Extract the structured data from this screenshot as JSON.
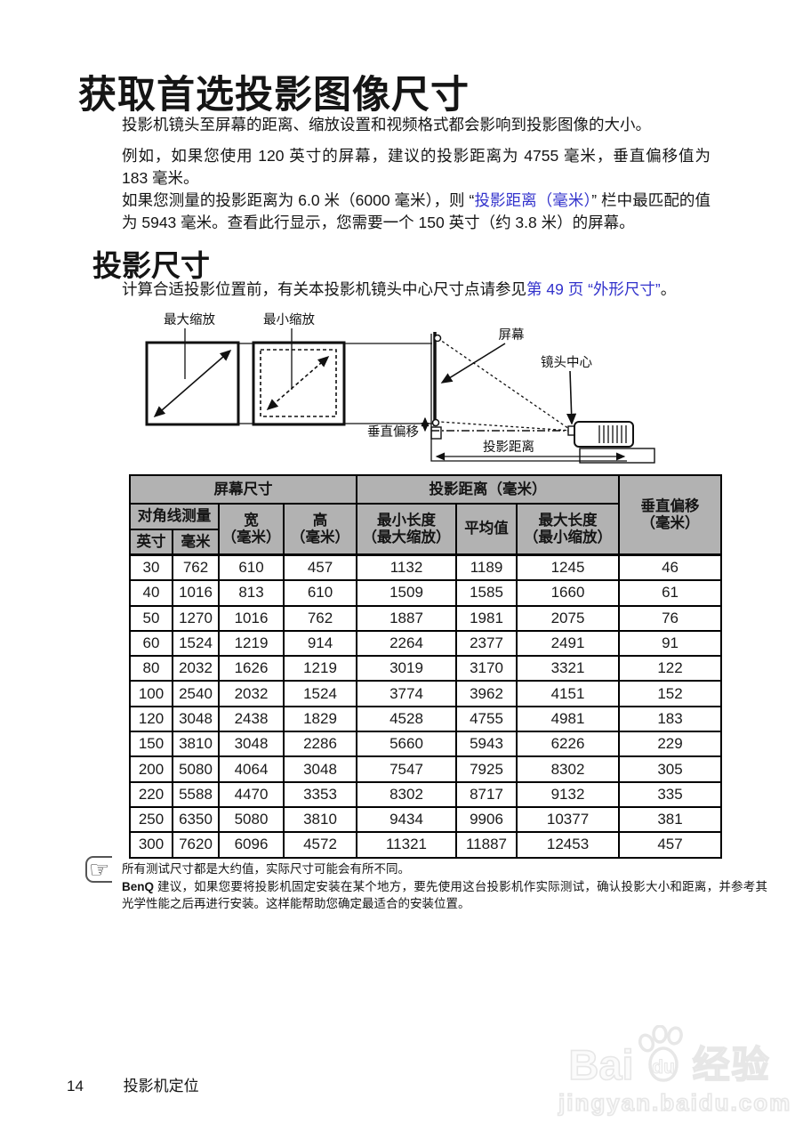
{
  "colors": {
    "link": "#3333cc",
    "table_header_bg": "#b2b2b2"
  },
  "page": {
    "title": "获取首选投影图像尺寸",
    "p1": "投影机镜头至屏幕的距离、缩放设置和视频格式都会影响到投影图像的大小。",
    "p2": "例如，如果您使用 120 英寸的屏幕，建议的投影距离为 4755 毫米，垂直偏移值为 183 毫米。",
    "p3_before": "如果您测量的投影距离为 6.0 米（6000 毫米），则 “",
    "p3_link": "投影距离（毫米）",
    "p3_after": "” 栏中最匹配的值为 5943 毫米。查看此行显示，您需要一个 150 英寸（约 3.8 米）的屏幕。",
    "section_heading": "投影尺寸",
    "p4_before": "计算合适投影位置前，有关本投影机镜头中心尺寸点请参见",
    "p4_link1": "第 49 页",
    "p4_link2": "“外形尺寸”",
    "p4_after": "。"
  },
  "diagram": {
    "max_zoom": "最大缩放",
    "min_zoom": "最小缩放",
    "screen": "屏幕",
    "lens_center": "镜头中心",
    "vertical_offset": "垂直偏移",
    "projection_distance": "投影距离"
  },
  "table": {
    "header": {
      "screen_size": "屏幕尺寸",
      "projection_distance": "投影距离（毫米）",
      "vertical_offset_l1": "垂直偏移",
      "vertical_offset_l2": "（毫米）",
      "diagonal": "对角线测量",
      "inch": "英寸",
      "mm": "毫米",
      "width_l1": "宽",
      "width_l2": "（毫米）",
      "height_l1": "高",
      "height_l2": "（毫米）",
      "min_length_l1": "最小长度",
      "min_length_l2": "（最大缩放）",
      "average": "平均值",
      "max_length_l1": "最大长度",
      "max_length_l2": "（最小缩放）"
    },
    "rows": [
      [
        "30",
        "762",
        "610",
        "457",
        "1132",
        "1189",
        "1245",
        "46"
      ],
      [
        "40",
        "1016",
        "813",
        "610",
        "1509",
        "1585",
        "1660",
        "61"
      ],
      [
        "50",
        "1270",
        "1016",
        "762",
        "1887",
        "1981",
        "2075",
        "76"
      ],
      [
        "60",
        "1524",
        "1219",
        "914",
        "2264",
        "2377",
        "2491",
        "91"
      ],
      [
        "80",
        "2032",
        "1626",
        "1219",
        "3019",
        "3170",
        "3321",
        "122"
      ],
      [
        "100",
        "2540",
        "2032",
        "1524",
        "3774",
        "3962",
        "4151",
        "152"
      ],
      [
        "120",
        "3048",
        "2438",
        "1829",
        "4528",
        "4755",
        "4981",
        "183"
      ],
      [
        "150",
        "3810",
        "3048",
        "2286",
        "5660",
        "5943",
        "6226",
        "229"
      ],
      [
        "200",
        "5080",
        "4064",
        "3048",
        "7547",
        "7925",
        "8302",
        "305"
      ],
      [
        "220",
        "5588",
        "4470",
        "3353",
        "8302",
        "8717",
        "9132",
        "335"
      ],
      [
        "250",
        "6350",
        "5080",
        "3810",
        "9434",
        "9906",
        "10377",
        "381"
      ],
      [
        "300",
        "7620",
        "6096",
        "4572",
        "11321",
        "11887",
        "12453",
        "457"
      ]
    ]
  },
  "note": {
    "icon": "☞",
    "line1": "所有测试尺寸都是大约值，实际尺寸可能会有所不同。",
    "brand": "BenQ",
    "line2": " 建议，如果您要将投影机固定安装在某个地方，要先使用这台投影机作实际测试，确认投影大小和距离，并参考其光学性能之后再进行安装。这样能帮助您确定最适合的安装位置。"
  },
  "footer": {
    "page_number": "14",
    "text": "投影机定位"
  },
  "watermark": {
    "part1": "Bai",
    "part2": "du",
    "part3": "经验",
    "url": "jingyan.baidu.com"
  }
}
